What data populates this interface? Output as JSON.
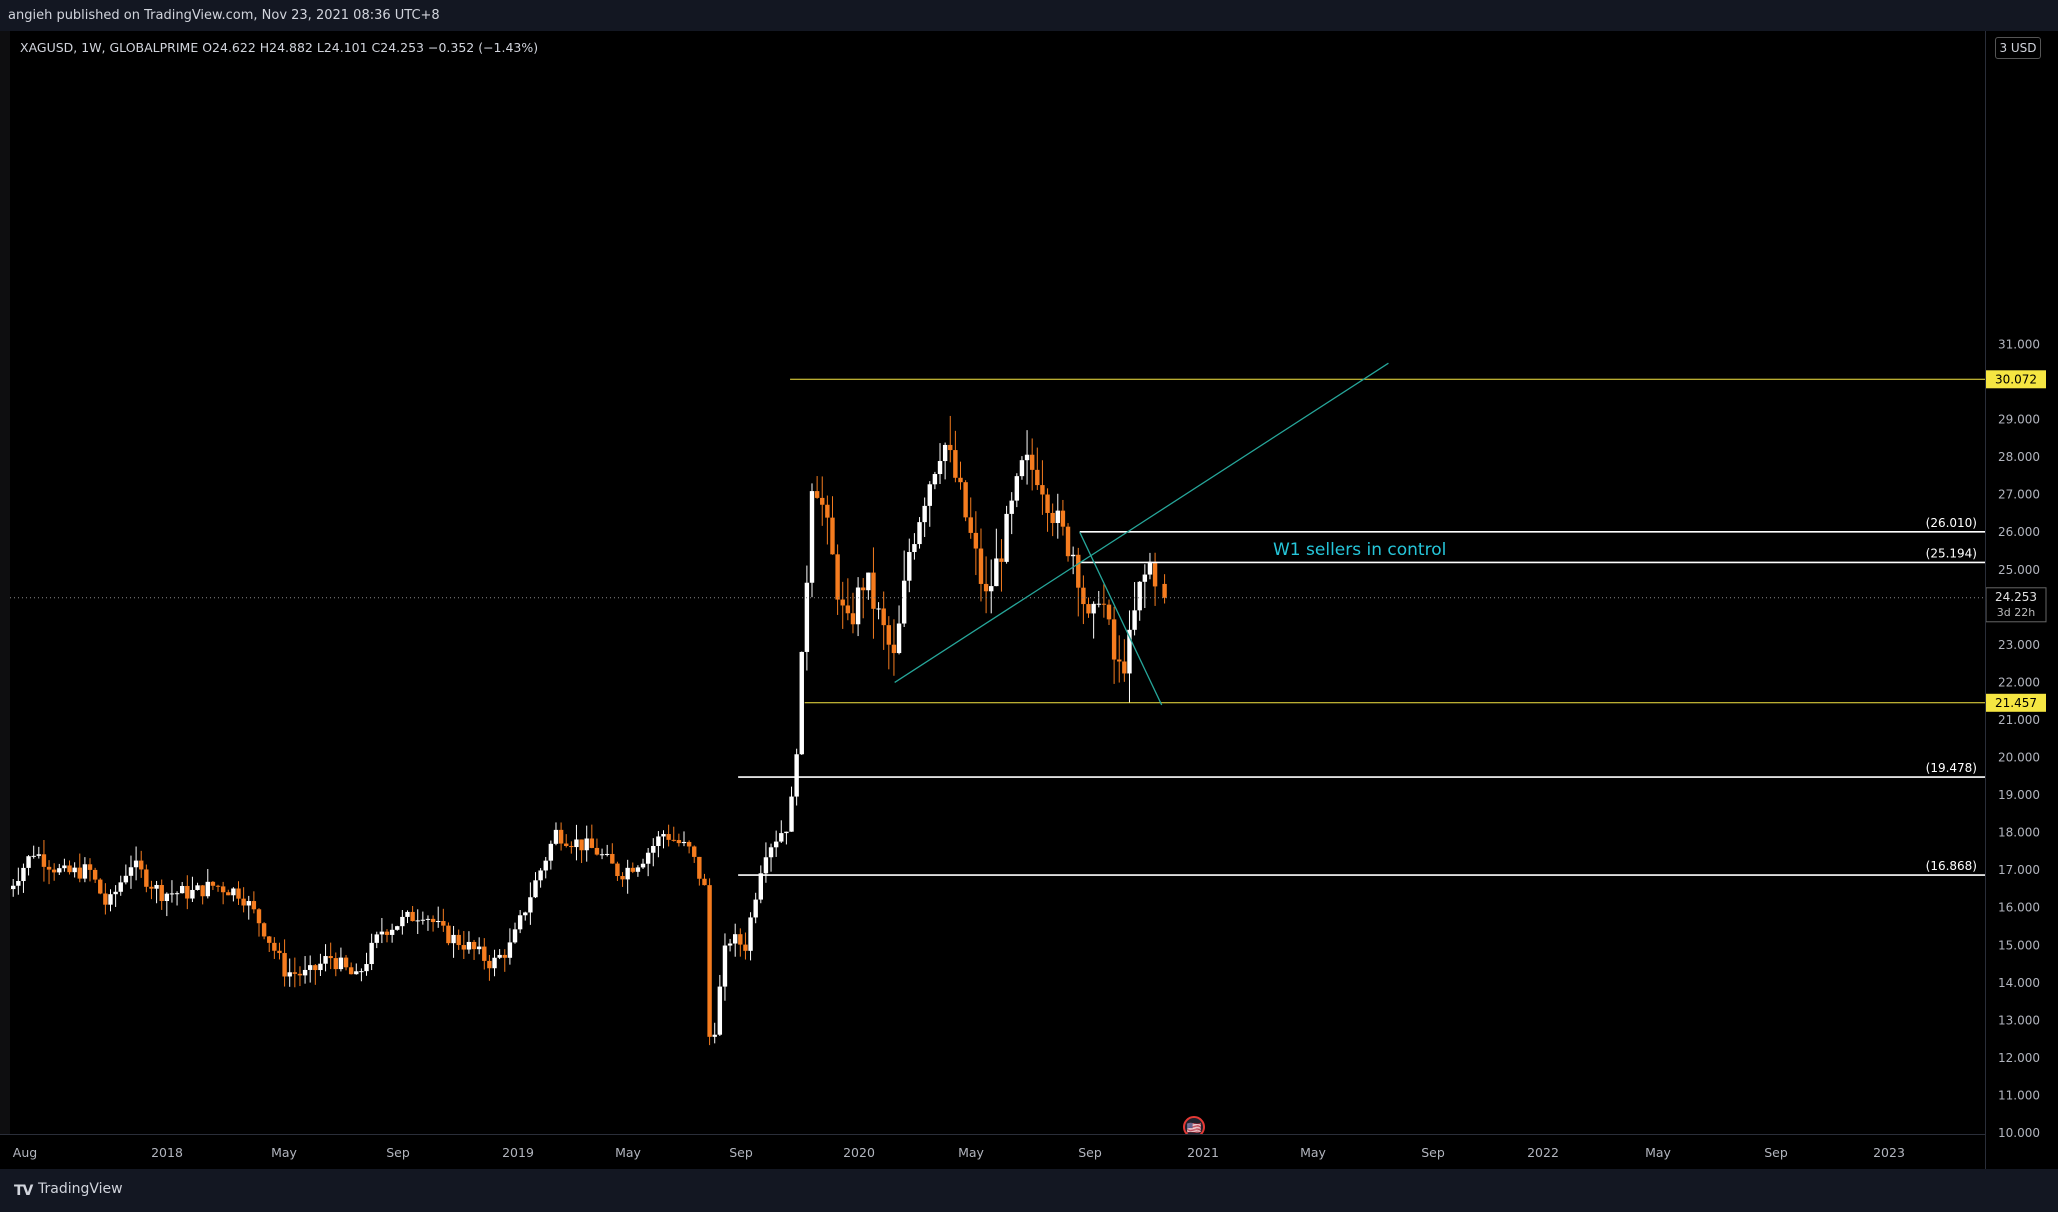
{
  "header": {
    "published_text": "angieh published on TradingView.com, Nov 23, 2021 08:36 UTC+8"
  },
  "symbol": {
    "line": "XAGUSD, 1W, GLOBALPRIME  O24.622  H24.882  L24.101  C24.253  −0.352 (−1.43%)"
  },
  "currency_button": "3 USD",
  "footer": {
    "logo_glyph": "TV",
    "brand": "TradingView"
  },
  "colors": {
    "background": "#000000",
    "up_candle": "#ffffff",
    "down_candle": "#f57c1f",
    "trend_line": "#26a69a",
    "yellow_level": "#f5e642",
    "white_level": "#ffffff",
    "annotation_text": "#26c6da",
    "axis_text": "#b2b5be"
  },
  "chart_data": {
    "type": "candlestick",
    "title": "XAGUSD, 1W, GLOBALPRIME",
    "ylim": [
      9.8,
      31.4
    ],
    "y_ticks": [
      "10.000",
      "11.000",
      "12.000",
      "13.000",
      "14.000",
      "15.000",
      "16.000",
      "17.000",
      "18.000",
      "19.000",
      "20.000",
      "21.000",
      "22.000",
      "23.000",
      "24.000",
      "25.000",
      "26.000",
      "27.000",
      "28.000",
      "29.000",
      "30.000",
      "31.000"
    ],
    "x_ticks": [
      "Aug",
      "2018",
      "May",
      "Sep",
      "2019",
      "May",
      "Sep",
      "2020",
      "May",
      "Sep",
      "2021",
      "May",
      "Sep",
      "2022",
      "May",
      "Sep",
      "2023"
    ],
    "price_path": [
      [
        "2017-08-01",
        16.5
      ],
      [
        "2017-09-05",
        17.5
      ],
      [
        "2017-10-15",
        16.9
      ],
      [
        "2017-11-20",
        17.0
      ],
      [
        "2017-12-15",
        16.0
      ],
      [
        "2018-01-15",
        17.2
      ],
      [
        "2018-02-25",
        16.4
      ],
      [
        "2018-04-10",
        16.4
      ],
      [
        "2018-05-10",
        16.6
      ],
      [
        "2018-06-15",
        16.4
      ],
      [
        "2018-07-15",
        15.5
      ],
      [
        "2018-08-15",
        14.3
      ],
      [
        "2018-09-15",
        14.2
      ],
      [
        "2018-10-15",
        14.7
      ],
      [
        "2018-11-20",
        14.1
      ],
      [
        "2018-12-25",
        15.4
      ],
      [
        "2019-02-20",
        15.9
      ],
      [
        "2019-03-20",
        15.3
      ],
      [
        "2019-04-20",
        15.0
      ],
      [
        "2019-05-25",
        14.5
      ],
      [
        "2019-06-20",
        15.0
      ],
      [
        "2019-07-15",
        16.3
      ],
      [
        "2019-08-20",
        18.0
      ],
      [
        "2019-09-10",
        17.8
      ],
      [
        "2019-10-15",
        17.5
      ],
      [
        "2019-11-15",
        16.9
      ],
      [
        "2019-12-15",
        17.3
      ],
      [
        "2020-01-15",
        18.0
      ],
      [
        "2020-02-20",
        17.5
      ],
      [
        "2020-03-10",
        16.5
      ],
      [
        "2020-03-18",
        12.0
      ],
      [
        "2020-04-10",
        15.2
      ],
      [
        "2020-05-05",
        15.0
      ],
      [
        "2020-05-30",
        17.5
      ],
      [
        "2020-07-05",
        18.3
      ],
      [
        "2020-07-20",
        22.0
      ],
      [
        "2020-08-05",
        27.8
      ],
      [
        "2020-08-20",
        26.5
      ],
      [
        "2020-09-20",
        23.3
      ],
      [
        "2020-10-15",
        24.8
      ],
      [
        "2020-11-25",
        22.5
      ],
      [
        "2020-12-15",
        25.5
      ],
      [
        "2021-01-05",
        27.0
      ],
      [
        "2021-01-30",
        28.5
      ],
      [
        "2021-02-20",
        27.2
      ],
      [
        "2021-03-30",
        24.2
      ],
      [
        "2021-04-25",
        25.9
      ],
      [
        "2021-05-20",
        27.8
      ],
      [
        "2021-06-10",
        27.6
      ],
      [
        "2021-07-10",
        26.0
      ],
      [
        "2021-07-30",
        25.4
      ],
      [
        "2021-08-12",
        24.0
      ],
      [
        "2021-08-20",
        23.2
      ],
      [
        "2021-09-01",
        24.6
      ],
      [
        "2021-09-25",
        22.2
      ],
      [
        "2021-10-10",
        22.8
      ],
      [
        "2021-10-25",
        24.4
      ],
      [
        "2021-11-12",
        25.3
      ],
      [
        "2021-11-22",
        24.25
      ]
    ],
    "last_ohlc": {
      "open": 24.622,
      "high": 24.882,
      "low": 24.101,
      "close": 24.253,
      "change": "−0.352",
      "change_pct": "(−1.43%)"
    },
    "levels": [
      {
        "price": 30.072,
        "label": "30.072",
        "style": "yellow",
        "start": "2020-07-05",
        "x_label": ""
      },
      {
        "price": 26.01,
        "label": "(26.010)",
        "style": "white",
        "start": "2021-08-05",
        "x_label": ""
      },
      {
        "price": 25.194,
        "label": "(25.194)",
        "style": "white",
        "start": "2021-08-05",
        "x_label": ""
      },
      {
        "price": 21.457,
        "label": "21.457",
        "style": "yellow",
        "start": "2020-07-25",
        "x_label": ""
      },
      {
        "price": 19.478,
        "label": "(19.478)",
        "style": "white",
        "start": "2020-04-25",
        "x_label": ""
      },
      {
        "price": 16.868,
        "label": "(16.868)",
        "style": "white",
        "start": "2020-04-25",
        "x_label": ""
      }
    ],
    "current_price": {
      "label": "24.253",
      "countdown": "3d 22h",
      "price": 24.253
    },
    "trend_lines": [
      {
        "from": [
          "2020-11-25",
          22.0
        ],
        "to": [
          "2022-10-01",
          30.5
        ]
      },
      {
        "from": [
          "2021-08-05",
          26.0
        ],
        "to": [
          "2021-11-25",
          21.4
        ]
      }
    ],
    "annotation": {
      "text": "W1 sellers in control",
      "at": [
        "2021-11-20",
        25.5
      ]
    },
    "event_marker": {
      "glyph": "🇺🇸",
      "at": "2021-11-20"
    }
  }
}
